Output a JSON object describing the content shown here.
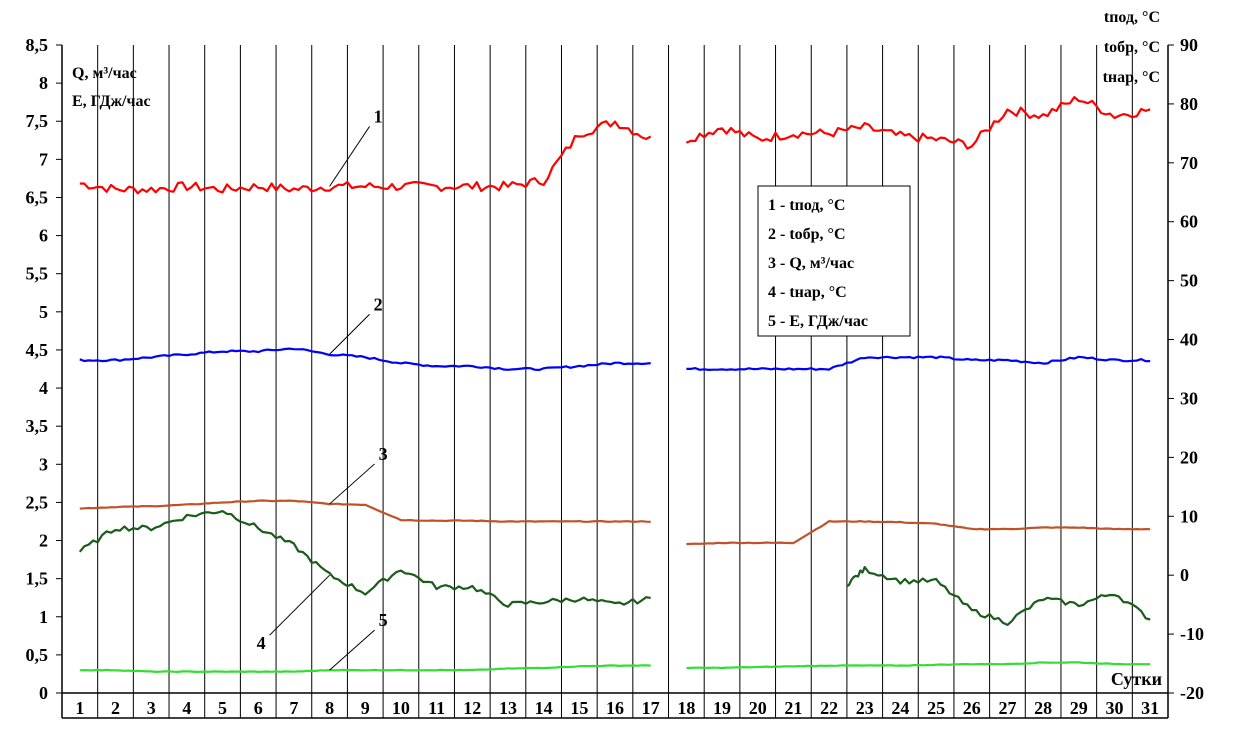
{
  "chart_data": {
    "type": "line",
    "x_title": "Сутки",
    "x_categories": [
      "1",
      "2",
      "3",
      "4",
      "5",
      "6",
      "7",
      "8",
      "9",
      "10",
      "11",
      "12",
      "13",
      "14",
      "15",
      "16",
      "17",
      "18",
      "19",
      "20",
      "21",
      "22",
      "23",
      "24",
      "25",
      "26",
      "27",
      "28",
      "29",
      "30",
      "31"
    ],
    "y_left": {
      "label_lines": [
        "Q, м³/час",
        "E, ГДж/час"
      ],
      "range": [
        0,
        8.5
      ],
      "ticks": [
        "0",
        "0,5",
        "1",
        "1,5",
        "2",
        "2,5",
        "3",
        "3,5",
        "4",
        "4,5",
        "5",
        "5,5",
        "6",
        "6,5",
        "7",
        "7,5",
        "8",
        "8,5"
      ]
    },
    "y_right": {
      "label_lines": [
        "tпод, °C",
        "tобр, °C",
        "tнар, °C"
      ],
      "range": [
        -20,
        90
      ],
      "ticks": [
        "-20",
        "-10",
        "0",
        "10",
        "20",
        "30",
        "40",
        "50",
        "60",
        "70",
        "80",
        "90"
      ]
    },
    "gap_between_days": [
      17,
      18
    ],
    "series": [
      {
        "id": "1",
        "name": "tпод, °C",
        "axis": "right",
        "color": "#ff0000",
        "callout": "1",
        "points": [
          [
            1,
            66.5
          ],
          [
            2,
            65.5
          ],
          [
            3,
            65.5
          ],
          [
            4,
            66
          ],
          [
            5,
            65.5
          ],
          [
            6,
            66
          ],
          [
            7,
            65.5
          ],
          [
            8,
            66
          ],
          [
            9,
            66
          ],
          [
            10,
            66
          ],
          [
            11,
            66
          ],
          [
            12,
            66
          ],
          [
            13,
            66
          ],
          [
            14,
            67
          ],
          [
            15,
            75
          ],
          [
            16,
            77
          ],
          [
            17,
            74
          ],
          [
            18,
            74
          ],
          [
            19,
            76
          ],
          [
            20,
            74
          ],
          [
            21,
            75
          ],
          [
            22,
            75
          ],
          [
            23,
            76
          ],
          [
            24,
            74.5
          ],
          [
            25,
            74
          ],
          [
            26,
            73
          ],
          [
            27,
            79
          ],
          [
            28,
            78
          ],
          [
            29,
            81
          ],
          [
            30,
            78
          ],
          [
            31,
            79
          ]
        ]
      },
      {
        "id": "2",
        "name": "tобр, °C",
        "axis": "right",
        "color": "#0000ff",
        "callout": "2",
        "points": [
          [
            1,
            36.5
          ],
          [
            2,
            36.5
          ],
          [
            3,
            37
          ],
          [
            4,
            37.5
          ],
          [
            5,
            38
          ],
          [
            6,
            38
          ],
          [
            7,
            38.5
          ],
          [
            8,
            37.5
          ],
          [
            9,
            37
          ],
          [
            10,
            36
          ],
          [
            11,
            35.5
          ],
          [
            12,
            35.5
          ],
          [
            13,
            35
          ],
          [
            14,
            35
          ],
          [
            15,
            35.5
          ],
          [
            16,
            36
          ],
          [
            17,
            36
          ],
          [
            18,
            35
          ],
          [
            19,
            35
          ],
          [
            20,
            35
          ],
          [
            21,
            35
          ],
          [
            22,
            35
          ],
          [
            23,
            37
          ],
          [
            24,
            37
          ],
          [
            25,
            37
          ],
          [
            26,
            36.5
          ],
          [
            27,
            36.5
          ],
          [
            28,
            36
          ],
          [
            29,
            37
          ],
          [
            30,
            36.5
          ],
          [
            31,
            36.5
          ]
        ]
      },
      {
        "id": "3",
        "name": "Q, м³/час",
        "axis": "left",
        "color": "#c0522a",
        "callout": "3",
        "points": [
          [
            1,
            2.42
          ],
          [
            2,
            2.44
          ],
          [
            3,
            2.45
          ],
          [
            4,
            2.47
          ],
          [
            5,
            2.5
          ],
          [
            6,
            2.52
          ],
          [
            7,
            2.52
          ],
          [
            8,
            2.48
          ],
          [
            9,
            2.47
          ],
          [
            10,
            2.27
          ],
          [
            11,
            2.26
          ],
          [
            12,
            2.26
          ],
          [
            13,
            2.25
          ],
          [
            14,
            2.25
          ],
          [
            15,
            2.25
          ],
          [
            16,
            2.25
          ],
          [
            17,
            2.25
          ],
          [
            18,
            1.95
          ],
          [
            19,
            1.97
          ],
          [
            20,
            1.97
          ],
          [
            21,
            1.97
          ],
          [
            22,
            2.25
          ],
          [
            23,
            2.25
          ],
          [
            24,
            2.24
          ],
          [
            25,
            2.22
          ],
          [
            26,
            2.15
          ],
          [
            27,
            2.15
          ],
          [
            28,
            2.17
          ],
          [
            29,
            2.17
          ],
          [
            30,
            2.15
          ],
          [
            31,
            2.15
          ]
        ]
      },
      {
        "id": "4",
        "name": "tнар, °C",
        "axis": "right",
        "color": "#1a5c1a",
        "callout": "4",
        "points": [
          [
            1,
            4
          ],
          [
            2,
            8
          ],
          [
            3,
            8
          ],
          [
            4,
            10
          ],
          [
            5,
            11
          ],
          [
            6,
            8
          ],
          [
            7,
            5
          ],
          [
            8,
            0
          ],
          [
            9,
            -3
          ],
          [
            10,
            1
          ],
          [
            11,
            -2
          ],
          [
            12,
            -2
          ],
          [
            13,
            -5
          ],
          [
            14,
            -4.5
          ],
          [
            15,
            -4
          ],
          [
            16,
            -5
          ],
          [
            17,
            -4
          ],
          [
            22.5,
            -1.5
          ],
          [
            23,
            1
          ],
          [
            24,
            -1
          ],
          [
            25,
            -1
          ],
          [
            26,
            -6
          ],
          [
            27,
            -8
          ],
          [
            28,
            -4
          ],
          [
            29,
            -5
          ],
          [
            30,
            -3
          ],
          [
            31,
            -7.5
          ]
        ]
      },
      {
        "id": "5",
        "name": "E, ГДж/час",
        "axis": "left",
        "color": "#33dd33",
        "callout": "5",
        "points": [
          [
            1,
            0.3
          ],
          [
            2,
            0.3
          ],
          [
            3,
            0.28
          ],
          [
            4,
            0.28
          ],
          [
            5,
            0.28
          ],
          [
            6,
            0.28
          ],
          [
            7,
            0.28
          ],
          [
            8,
            0.3
          ],
          [
            9,
            0.3
          ],
          [
            10,
            0.3
          ],
          [
            11,
            0.3
          ],
          [
            12,
            0.3
          ],
          [
            13,
            0.32
          ],
          [
            14,
            0.33
          ],
          [
            15,
            0.35
          ],
          [
            16,
            0.36
          ],
          [
            17,
            0.36
          ],
          [
            18,
            0.33
          ],
          [
            19,
            0.33
          ],
          [
            20,
            0.34
          ],
          [
            21,
            0.35
          ],
          [
            22,
            0.36
          ],
          [
            23,
            0.36
          ],
          [
            24,
            0.36
          ],
          [
            25,
            0.37
          ],
          [
            26,
            0.38
          ],
          [
            27,
            0.38
          ],
          [
            28,
            0.4
          ],
          [
            29,
            0.4
          ],
          [
            30,
            0.38
          ],
          [
            31,
            0.38
          ]
        ]
      }
    ],
    "legend": {
      "placement": "center-right",
      "entries": [
        {
          "num": "1",
          "text": "tпод, °C"
        },
        {
          "num": "2",
          "text": "tобр, °C"
        },
        {
          "num": "3",
          "text": "Q, м³/час"
        },
        {
          "num": "4",
          "text": "tнар, °C"
        },
        {
          "num": "5",
          "text": "E, ГДж/час"
        }
      ]
    },
    "grid": {
      "vertical": true,
      "horizontal": false
    }
  }
}
